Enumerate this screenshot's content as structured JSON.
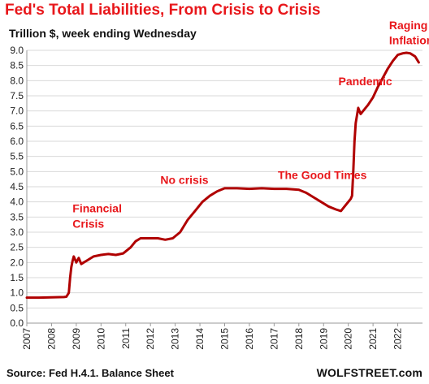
{
  "page": {
    "title": "Fed's Total Liabilities, From Crisis to Crisis",
    "subtitle": "Trillion $, week ending Wednesday",
    "source": "Source: Fed H.4.1. Balance Sheet",
    "brand": "WOLFSTREET.com"
  },
  "colors": {
    "line": "#b00000",
    "accent": "#e8171b",
    "grid": "#d9d9d9"
  },
  "chart_data": {
    "type": "line",
    "title": "Fed's Total Liabilities, From Crisis to Crisis",
    "subtitle": "Trillion $, week ending Wednesday",
    "xlim": [
      2007,
      2023
    ],
    "ylim": [
      0,
      9
    ],
    "grid": true,
    "x_ticks": [
      "2007",
      "2008",
      "2009",
      "2010",
      "2011",
      "2012",
      "2013",
      "2014",
      "2015",
      "2016",
      "2017",
      "2018",
      "2019",
      "2020",
      "2021",
      "2022"
    ],
    "y_ticks": [
      "0.0",
      "0.5",
      "1.0",
      "1.5",
      "2.0",
      "2.5",
      "3.0",
      "3.5",
      "4.0",
      "4.5",
      "5.0",
      "5.5",
      "6.0",
      "6.5",
      "7.0",
      "7.5",
      "8.0",
      "8.5",
      "9.0"
    ],
    "series": [
      {
        "x": [
          2007.0,
          2007.5,
          2008.0,
          2008.5,
          2008.6,
          2008.7,
          2008.75,
          2008.8,
          2008.85,
          2008.9,
          2009.0,
          2009.1,
          2009.2,
          2009.3,
          2009.4,
          2009.5,
          2009.7,
          2010.0,
          2010.3,
          2010.6,
          2010.9,
          2011.2,
          2011.4,
          2011.6,
          2011.8,
          2012.0,
          2012.3,
          2012.6,
          2012.9,
          2013.2,
          2013.5,
          2013.8,
          2014.1,
          2014.4,
          2014.7,
          2015.0,
          2015.5,
          2016.0,
          2016.5,
          2017.0,
          2017.5,
          2018.0,
          2018.3,
          2018.6,
          2018.9,
          2019.2,
          2019.5,
          2019.7,
          2019.9,
          2020.1,
          2020.15,
          2020.2,
          2020.25,
          2020.3,
          2020.4,
          2020.5,
          2020.6,
          2020.8,
          2021.0,
          2021.2,
          2021.4,
          2021.6,
          2021.8,
          2022.0,
          2022.2,
          2022.35,
          2022.5,
          2022.7,
          2022.85
        ],
        "y": [
          0.84,
          0.84,
          0.85,
          0.86,
          0.87,
          1.0,
          1.5,
          1.85,
          2.05,
          2.2,
          2.0,
          2.15,
          1.95,
          2.0,
          2.05,
          2.1,
          2.2,
          2.25,
          2.28,
          2.25,
          2.3,
          2.5,
          2.7,
          2.8,
          2.8,
          2.8,
          2.8,
          2.75,
          2.8,
          3.0,
          3.4,
          3.7,
          4.0,
          4.2,
          4.35,
          4.45,
          4.45,
          4.43,
          4.45,
          4.43,
          4.43,
          4.4,
          4.3,
          4.15,
          4.0,
          3.85,
          3.75,
          3.7,
          3.9,
          4.1,
          4.2,
          5.0,
          6.0,
          6.6,
          7.1,
          6.9,
          7.0,
          7.2,
          7.45,
          7.8,
          8.1,
          8.4,
          8.65,
          8.85,
          8.9,
          8.92,
          8.9,
          8.8,
          8.6
        ]
      }
    ],
    "annotations": [
      {
        "text": "Financial",
        "x": 2008.85,
        "y": 3.65
      },
      {
        "text": "Crisis",
        "x": 2008.85,
        "y": 3.15
      },
      {
        "text": "No crisis",
        "x": 2012.4,
        "y": 4.6
      },
      {
        "text": "The Good Times",
        "x": 2017.15,
        "y": 4.75
      },
      {
        "text": "Pandemic",
        "x": 2019.6,
        "y": 7.85
      },
      {
        "text": "Raging",
        "x": 2021.65,
        "y": 9.7
      },
      {
        "text": "Inflation",
        "x": 2021.65,
        "y": 9.2
      }
    ]
  }
}
